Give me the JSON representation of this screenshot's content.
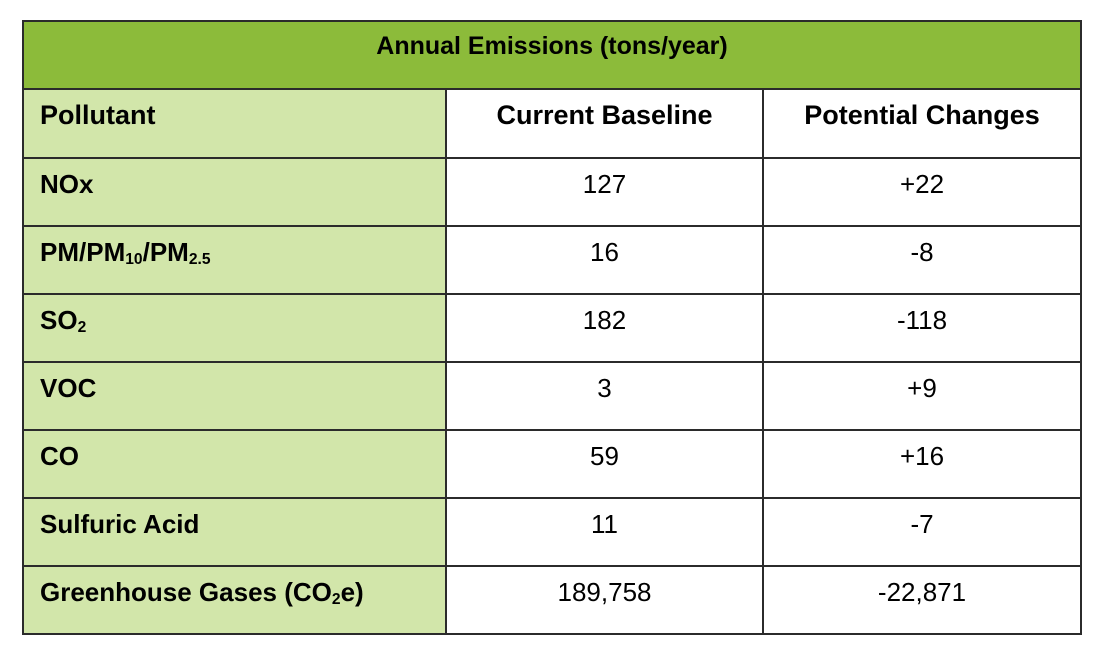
{
  "table": {
    "title": "Annual Emissions (tons/year)",
    "columns": [
      "Pollutant",
      "Current Baseline",
      "Potential Changes"
    ],
    "rows": [
      {
        "pollutant": [
          {
            "text": "NOx"
          }
        ],
        "baseline": "127",
        "change": "+22"
      },
      {
        "pollutant": [
          {
            "text": "PM/PM"
          },
          {
            "text": "10",
            "sub": true
          },
          {
            "text": "/PM"
          },
          {
            "text": "2.5",
            "sub": true
          }
        ],
        "baseline": "16",
        "change": "-8"
      },
      {
        "pollutant": [
          {
            "text": "SO"
          },
          {
            "text": "2",
            "sub": true
          }
        ],
        "baseline": "182",
        "change": "-118"
      },
      {
        "pollutant": [
          {
            "text": "VOC"
          }
        ],
        "baseline": "3",
        "change": "+9"
      },
      {
        "pollutant": [
          {
            "text": "CO"
          }
        ],
        "baseline": "59",
        "change": "+16"
      },
      {
        "pollutant": [
          {
            "text": "Sulfuric Acid"
          }
        ],
        "baseline": "11",
        "change": "-7"
      },
      {
        "pollutant": [
          {
            "text": "Greenhouse Gases (CO"
          },
          {
            "text": "2",
            "sub": true
          },
          {
            "text": "e)"
          }
        ],
        "baseline": "189,758",
        "change": "-22,871"
      }
    ]
  }
}
